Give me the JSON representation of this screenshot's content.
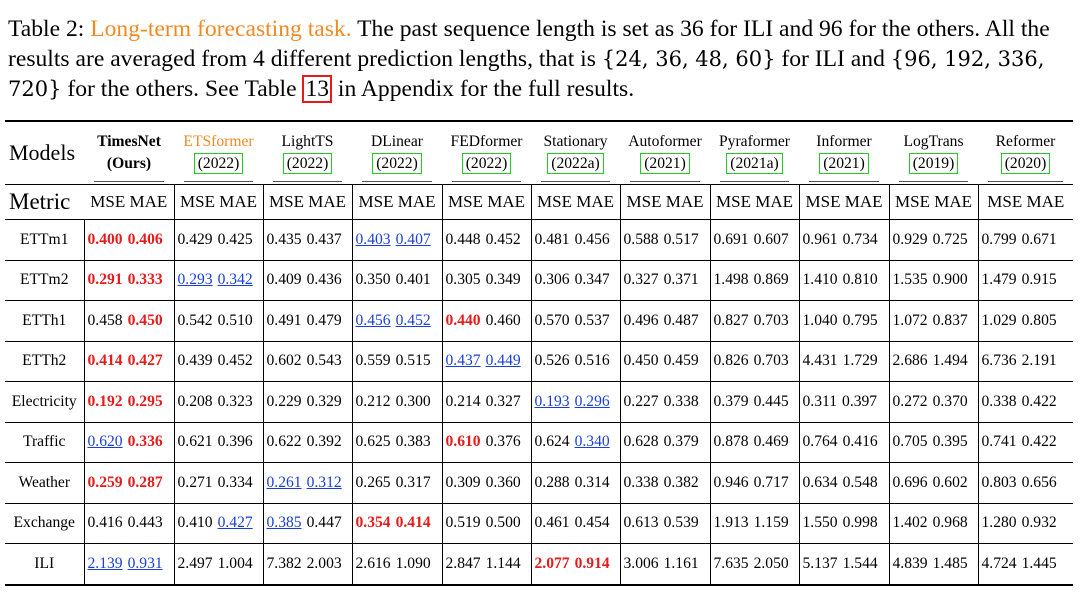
{
  "caption": {
    "prefix": "Table 2: ",
    "highlight": "Long-term forecasting task.",
    "body1": " The past sequence length is set as 36 for ILI and 96 for the others. All the results are averaged from 4 different prediction lengths, that is ",
    "math1": "{24, 36, 48, 60}",
    "body2": " for ILI and ",
    "math2": "{96, 192, 336, 720}",
    "body3": " for the others. See Table ",
    "ref": "13",
    "body4": " in Appendix for the full results."
  },
  "table": {
    "models_label": "Models",
    "metric_label": "Metric",
    "mse": "MSE",
    "mae": "MAE",
    "models": [
      {
        "name": "TimesNet",
        "year": "(Ours)",
        "style": "ours"
      },
      {
        "name": "ETSformer",
        "year": "(2022)",
        "style": "orange"
      },
      {
        "name": "LightTS",
        "year": "(2022)",
        "style": "normal"
      },
      {
        "name": "DLinear",
        "year": "(2022)",
        "style": "normal"
      },
      {
        "name": "FEDformer",
        "year": "(2022)",
        "style": "normal"
      },
      {
        "name": "Stationary",
        "year": "(2022a)",
        "style": "normal"
      },
      {
        "name": "Autoformer",
        "year": "(2021)",
        "style": "normal"
      },
      {
        "name": "Pyraformer",
        "year": "(2021a)",
        "style": "normal"
      },
      {
        "name": "Informer",
        "year": "(2021)",
        "style": "normal"
      },
      {
        "name": "LogTrans",
        "year": "(2019)",
        "style": "normal"
      },
      {
        "name": "Reformer",
        "year": "(2020)",
        "style": "normal"
      }
    ],
    "rows": [
      {
        "dataset": "ETTm1",
        "cells": [
          [
            "0.400",
            "best",
            "0.406",
            "best"
          ],
          [
            "0.429",
            "",
            "0.425",
            ""
          ],
          [
            "0.435",
            "",
            "0.437",
            ""
          ],
          [
            "0.403",
            "second",
            "0.407",
            "second"
          ],
          [
            "0.448",
            "",
            "0.452",
            ""
          ],
          [
            "0.481",
            "",
            "0.456",
            ""
          ],
          [
            "0.588",
            "",
            "0.517",
            ""
          ],
          [
            "0.691",
            "",
            "0.607",
            ""
          ],
          [
            "0.961",
            "",
            "0.734",
            ""
          ],
          [
            "0.929",
            "",
            "0.725",
            ""
          ],
          [
            "0.799",
            "",
            "0.671",
            ""
          ]
        ]
      },
      {
        "dataset": "ETTm2",
        "cells": [
          [
            "0.291",
            "best",
            "0.333",
            "best"
          ],
          [
            "0.293",
            "second",
            "0.342",
            "second"
          ],
          [
            "0.409",
            "",
            "0.436",
            ""
          ],
          [
            "0.350",
            "",
            "0.401",
            ""
          ],
          [
            "0.305",
            "",
            "0.349",
            ""
          ],
          [
            "0.306",
            "",
            "0.347",
            ""
          ],
          [
            "0.327",
            "",
            "0.371",
            ""
          ],
          [
            "1.498",
            "",
            "0.869",
            ""
          ],
          [
            "1.410",
            "",
            "0.810",
            ""
          ],
          [
            "1.535",
            "",
            "0.900",
            ""
          ],
          [
            "1.479",
            "",
            "0.915",
            ""
          ]
        ]
      },
      {
        "dataset": "ETTh1",
        "cells": [
          [
            "0.458",
            "",
            "0.450",
            "best"
          ],
          [
            "0.542",
            "",
            "0.510",
            ""
          ],
          [
            "0.491",
            "",
            "0.479",
            ""
          ],
          [
            "0.456",
            "second",
            "0.452",
            "second"
          ],
          [
            "0.440",
            "best",
            "0.460",
            ""
          ],
          [
            "0.570",
            "",
            "0.537",
            ""
          ],
          [
            "0.496",
            "",
            "0.487",
            ""
          ],
          [
            "0.827",
            "",
            "0.703",
            ""
          ],
          [
            "1.040",
            "",
            "0.795",
            ""
          ],
          [
            "1.072",
            "",
            "0.837",
            ""
          ],
          [
            "1.029",
            "",
            "0.805",
            ""
          ]
        ]
      },
      {
        "dataset": "ETTh2",
        "cells": [
          [
            "0.414",
            "best",
            "0.427",
            "best"
          ],
          [
            "0.439",
            "",
            "0.452",
            ""
          ],
          [
            "0.602",
            "",
            "0.543",
            ""
          ],
          [
            "0.559",
            "",
            "0.515",
            ""
          ],
          [
            "0.437",
            "second",
            "0.449",
            "second"
          ],
          [
            "0.526",
            "",
            "0.516",
            ""
          ],
          [
            "0.450",
            "",
            "0.459",
            ""
          ],
          [
            "0.826",
            "",
            "0.703",
            ""
          ],
          [
            "4.431",
            "",
            "1.729",
            ""
          ],
          [
            "2.686",
            "",
            "1.494",
            ""
          ],
          [
            "6.736",
            "",
            "2.191",
            ""
          ]
        ]
      },
      {
        "dataset": "Electricity",
        "cells": [
          [
            "0.192",
            "best",
            "0.295",
            "best"
          ],
          [
            "0.208",
            "",
            "0.323",
            ""
          ],
          [
            "0.229",
            "",
            "0.329",
            ""
          ],
          [
            "0.212",
            "",
            "0.300",
            ""
          ],
          [
            "0.214",
            "",
            "0.327",
            ""
          ],
          [
            "0.193",
            "second",
            "0.296",
            "second"
          ],
          [
            "0.227",
            "",
            "0.338",
            ""
          ],
          [
            "0.379",
            "",
            "0.445",
            ""
          ],
          [
            "0.311",
            "",
            "0.397",
            ""
          ],
          [
            "0.272",
            "",
            "0.370",
            ""
          ],
          [
            "0.338",
            "",
            "0.422",
            ""
          ]
        ]
      },
      {
        "dataset": "Traffic",
        "cells": [
          [
            "0.620",
            "second",
            "0.336",
            "best"
          ],
          [
            "0.621",
            "",
            "0.396",
            ""
          ],
          [
            "0.622",
            "",
            "0.392",
            ""
          ],
          [
            "0.625",
            "",
            "0.383",
            ""
          ],
          [
            "0.610",
            "best",
            "0.376",
            ""
          ],
          [
            "0.624",
            "",
            "0.340",
            "second"
          ],
          [
            "0.628",
            "",
            "0.379",
            ""
          ],
          [
            "0.878",
            "",
            "0.469",
            ""
          ],
          [
            "0.764",
            "",
            "0.416",
            ""
          ],
          [
            "0.705",
            "",
            "0.395",
            ""
          ],
          [
            "0.741",
            "",
            "0.422",
            ""
          ]
        ]
      },
      {
        "dataset": "Weather",
        "cells": [
          [
            "0.259",
            "best",
            "0.287",
            "best"
          ],
          [
            "0.271",
            "",
            "0.334",
            ""
          ],
          [
            "0.261",
            "second",
            "0.312",
            "second"
          ],
          [
            "0.265",
            "",
            "0.317",
            ""
          ],
          [
            "0.309",
            "",
            "0.360",
            ""
          ],
          [
            "0.288",
            "",
            "0.314",
            ""
          ],
          [
            "0.338",
            "",
            "0.382",
            ""
          ],
          [
            "0.946",
            "",
            "0.717",
            ""
          ],
          [
            "0.634",
            "",
            "0.548",
            ""
          ],
          [
            "0.696",
            "",
            "0.602",
            ""
          ],
          [
            "0.803",
            "",
            "0.656",
            ""
          ]
        ]
      },
      {
        "dataset": "Exchange",
        "cells": [
          [
            "0.416",
            "",
            "0.443",
            ""
          ],
          [
            "0.410",
            "",
            "0.427",
            "second"
          ],
          [
            "0.385",
            "second",
            "0.447",
            ""
          ],
          [
            "0.354",
            "best",
            "0.414",
            "best"
          ],
          [
            "0.519",
            "",
            "0.500",
            ""
          ],
          [
            "0.461",
            "",
            "0.454",
            ""
          ],
          [
            "0.613",
            "",
            "0.539",
            ""
          ],
          [
            "1.913",
            "",
            "1.159",
            ""
          ],
          [
            "1.550",
            "",
            "0.998",
            ""
          ],
          [
            "1.402",
            "",
            "0.968",
            ""
          ],
          [
            "1.280",
            "",
            "0.932",
            ""
          ]
        ]
      },
      {
        "dataset": "ILI",
        "cells": [
          [
            "2.139",
            "second",
            "0.931",
            "second"
          ],
          [
            "2.497",
            "",
            "1.004",
            ""
          ],
          [
            "7.382",
            "",
            "2.003",
            ""
          ],
          [
            "2.616",
            "",
            "1.090",
            ""
          ],
          [
            "2.847",
            "",
            "1.144",
            ""
          ],
          [
            "2.077",
            "best",
            "0.914",
            "best"
          ],
          [
            "3.006",
            "",
            "1.161",
            ""
          ],
          [
            "7.635",
            "",
            "2.050",
            ""
          ],
          [
            "5.137",
            "",
            "1.544",
            ""
          ],
          [
            "4.839",
            "",
            "1.485",
            ""
          ],
          [
            "4.724",
            "",
            "1.445",
            ""
          ]
        ]
      }
    ],
    "colors": {
      "best": "#e61b1b",
      "second": "#1a3fd6",
      "highlight": "#f08a24",
      "cite_box": "#22cc22",
      "ref_box": "#e61b1b"
    }
  }
}
